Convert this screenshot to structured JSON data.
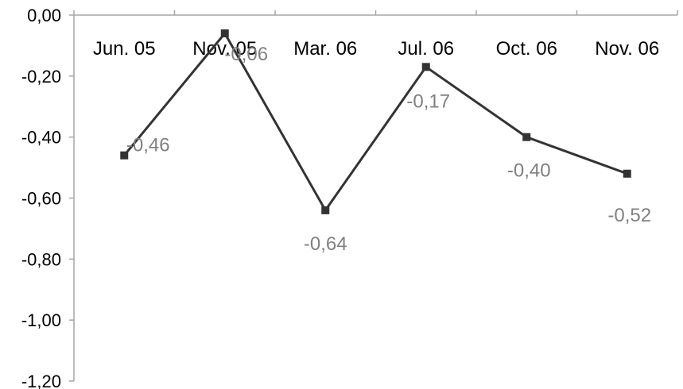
{
  "chart_data": {
    "type": "line",
    "title": "",
    "xlabel": "",
    "ylabel": "",
    "categories": [
      "Jun. 05",
      "Nov. 05",
      "Mar. 06",
      "Jul. 06",
      "Oct. 06",
      "Nov. 06"
    ],
    "series": [
      {
        "values": [
          -0.46,
          -0.06,
          -0.64,
          -0.17,
          -0.4,
          -0.52
        ],
        "data_labels": [
          "-0,46",
          "-0,06",
          "-0,64",
          "-0,17",
          "-0,40",
          "-0,52"
        ],
        "color": "#333333",
        "marker": "square"
      }
    ],
    "ylim": [
      -1.2,
      0
    ],
    "yticks": [
      0,
      -0.2,
      -0.4,
      -0.6,
      -0.8,
      -1.0,
      -1.2
    ],
    "ytick_labels": [
      "0,00",
      "-0,20",
      "-0,40",
      "-0,60",
      "-0,80",
      "-1,00",
      "-1,20"
    ],
    "x_axis_position": "top",
    "grid": false,
    "legend": "none",
    "colors": {
      "axis": "#a6a6a6",
      "tick_text": "#000000",
      "data_label_text": "#808080",
      "line": "#333333"
    }
  }
}
